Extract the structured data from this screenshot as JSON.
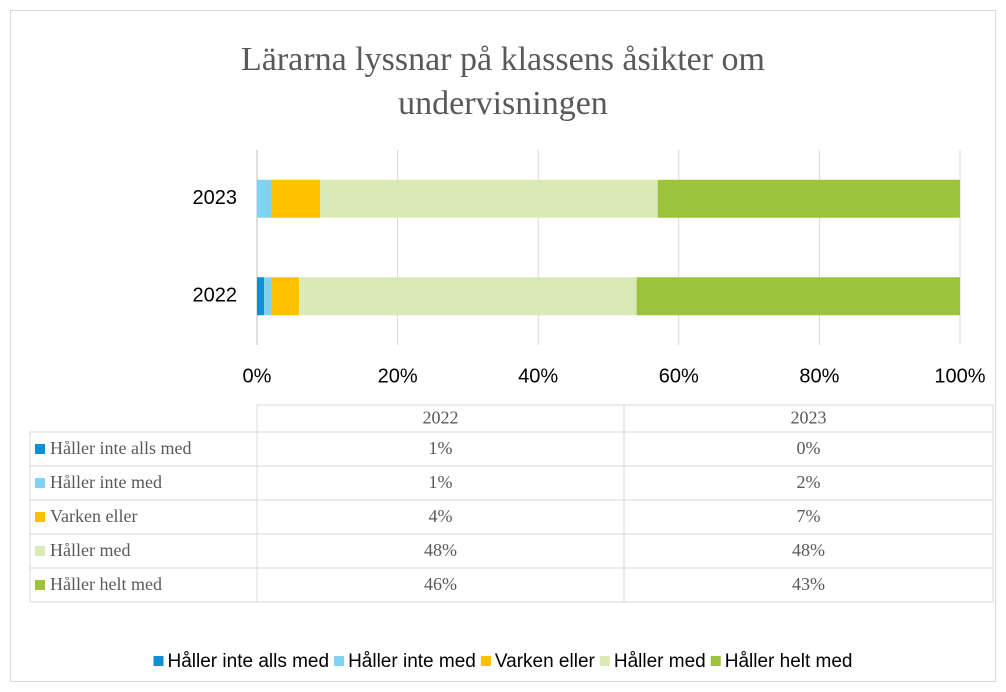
{
  "chart_data": {
    "type": "stacked_barh",
    "title": "Lärarna lyssnar på klassens åsikter om undervisningen",
    "categories": [
      "2022",
      "2023"
    ],
    "series": [
      {
        "name": "Håller inte alls med",
        "color": "#0f8fd4",
        "values": [
          1,
          0
        ],
        "value_labels": [
          "1%",
          "0%"
        ]
      },
      {
        "name": "Håller inte med",
        "color": "#7fd3f5",
        "values": [
          1,
          2
        ],
        "value_labels": [
          "1%",
          "2%"
        ]
      },
      {
        "name": "Varken eller",
        "color": "#ffc000",
        "values": [
          4,
          7
        ],
        "value_labels": [
          "4%",
          "7%"
        ]
      },
      {
        "name": "Håller med",
        "color": "#d9eab8",
        "values": [
          48,
          48
        ],
        "value_labels": [
          "48%",
          "48%"
        ]
      },
      {
        "name": "Håller helt med",
        "color": "#9dc33b",
        "values": [
          46,
          43
        ],
        "value_labels": [
          "46%",
          "43%"
        ]
      }
    ],
    "xlim": [
      0,
      100
    ],
    "xticks": [
      {
        "value": 0,
        "label": "0%"
      },
      {
        "value": 20,
        "label": "20%"
      },
      {
        "value": 40,
        "label": "40%"
      },
      {
        "value": 60,
        "label": "60%"
      },
      {
        "value": 80,
        "label": "80%"
      },
      {
        "value": 100,
        "label": "100%"
      }
    ],
    "grid": true,
    "legend": "bottom"
  }
}
